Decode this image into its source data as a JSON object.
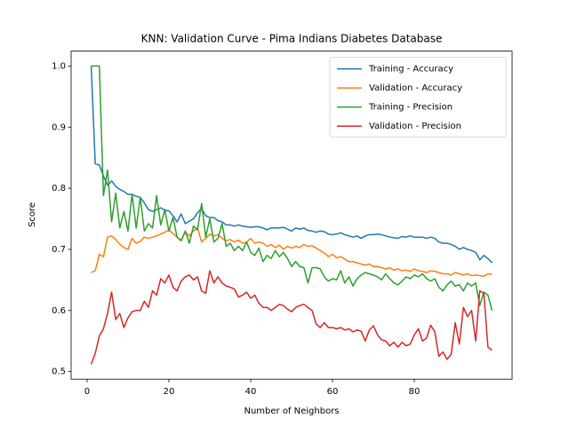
{
  "chart_data": {
    "type": "line",
    "title": "KNN: Validation Curve - Pima Indians Diabetes Database",
    "x_label": "Number of Neighbors",
    "y_label": "Score",
    "xlim": [
      -3.9,
      103.9
    ],
    "ylim": [
      0.4876,
      1.0244
    ],
    "xticks": [
      0,
      20,
      40,
      60,
      80
    ],
    "yticks": [
      0.5,
      0.6,
      0.7,
      0.8,
      0.9,
      {
        "value": 1,
        "label": "1.0"
      }
    ],
    "legend": "upper right",
    "x": [
      1,
      2,
      3,
      4,
      5,
      6,
      7,
      8,
      9,
      10,
      11,
      12,
      13,
      14,
      15,
      16,
      17,
      18,
      19,
      20,
      21,
      22,
      23,
      24,
      25,
      26,
      27,
      28,
      29,
      30,
      31,
      32,
      33,
      34,
      35,
      36,
      37,
      38,
      39,
      40,
      41,
      42,
      43,
      44,
      45,
      46,
      47,
      48,
      49,
      50,
      51,
      52,
      53,
      54,
      55,
      56,
      57,
      58,
      59,
      60,
      61,
      62,
      63,
      64,
      65,
      66,
      67,
      68,
      69,
      70,
      71,
      72,
      73,
      74,
      75,
      76,
      77,
      78,
      79,
      80,
      81,
      82,
      83,
      84,
      85,
      86,
      87,
      88,
      89,
      90,
      91,
      92,
      93,
      94,
      95,
      96,
      97,
      98,
      99
    ],
    "series": [
      {
        "name": "Training - Accuracy",
        "color": "#1f77b4",
        "values": [
          1.0,
          0.84,
          0.838,
          0.82,
          0.805,
          0.812,
          0.803,
          0.798,
          0.795,
          0.79,
          0.79,
          0.787,
          0.785,
          0.776,
          0.765,
          0.762,
          0.765,
          0.768,
          0.764,
          0.763,
          0.755,
          0.745,
          0.758,
          0.742,
          0.746,
          0.75,
          0.76,
          0.767,
          0.755,
          0.752,
          0.752,
          0.747,
          0.745,
          0.74,
          0.74,
          0.738,
          0.74,
          0.738,
          0.737,
          0.736,
          0.737,
          0.737,
          0.735,
          0.732,
          0.735,
          0.735,
          0.735,
          0.736,
          0.733,
          0.73,
          0.735,
          0.733,
          0.735,
          0.731,
          0.73,
          0.728,
          0.73,
          0.729,
          0.725,
          0.724,
          0.725,
          0.727,
          0.724,
          0.722,
          0.72,
          0.722,
          0.718,
          0.722,
          0.724,
          0.724,
          0.725,
          0.724,
          0.722,
          0.72,
          0.719,
          0.718,
          0.721,
          0.72,
          0.722,
          0.72,
          0.72,
          0.72,
          0.718,
          0.72,
          0.718,
          0.712,
          0.71,
          0.71,
          0.708,
          0.705,
          0.7,
          0.703,
          0.7,
          0.698,
          0.695,
          0.683,
          0.69,
          0.685,
          0.678
        ]
      },
      {
        "name": "Validation - Accuracy",
        "color": "#ff7f0e",
        "values": [
          0.662,
          0.665,
          0.692,
          0.688,
          0.72,
          0.722,
          0.716,
          0.708,
          0.703,
          0.7,
          0.718,
          0.71,
          0.713,
          0.72,
          0.718,
          0.72,
          0.722,
          0.725,
          0.728,
          0.732,
          0.726,
          0.72,
          0.715,
          0.728,
          0.722,
          0.73,
          0.735,
          0.712,
          0.718,
          0.725,
          0.722,
          0.724,
          0.718,
          0.714,
          0.716,
          0.712,
          0.715,
          0.71,
          0.712,
          0.718,
          0.71,
          0.712,
          0.71,
          0.705,
          0.708,
          0.703,
          0.707,
          0.7,
          0.705,
          0.702,
          0.705,
          0.703,
          0.708,
          0.705,
          0.706,
          0.702,
          0.698,
          0.694,
          0.688,
          0.692,
          0.686,
          0.688,
          0.684,
          0.68,
          0.68,
          0.678,
          0.676,
          0.674,
          0.676,
          0.672,
          0.672,
          0.67,
          0.668,
          0.67,
          0.666,
          0.668,
          0.665,
          0.666,
          0.664,
          0.668,
          0.665,
          0.664,
          0.662,
          0.665,
          0.664,
          0.662,
          0.66,
          0.66,
          0.658,
          0.662,
          0.66,
          0.658,
          0.66,
          0.657,
          0.658,
          0.657,
          0.656,
          0.66,
          0.659
        ]
      },
      {
        "name": "Training - Precision",
        "color": "#2ca02c",
        "values": [
          1.0,
          1.0,
          1.0,
          0.788,
          0.83,
          0.745,
          0.792,
          0.735,
          0.762,
          0.73,
          0.79,
          0.735,
          0.785,
          0.73,
          0.742,
          0.735,
          0.788,
          0.74,
          0.765,
          0.73,
          0.752,
          0.72,
          0.714,
          0.73,
          0.71,
          0.738,
          0.732,
          0.775,
          0.72,
          0.75,
          0.712,
          0.718,
          0.742,
          0.705,
          0.71,
          0.698,
          0.705,
          0.698,
          0.712,
          0.695,
          0.69,
          0.702,
          0.68,
          0.69,
          0.685,
          0.698,
          0.688,
          0.695,
          0.685,
          0.672,
          0.68,
          0.672,
          0.67,
          0.645,
          0.67,
          0.67,
          0.668,
          0.655,
          0.648,
          0.652,
          0.65,
          0.665,
          0.645,
          0.655,
          0.64,
          0.652,
          0.658,
          0.662,
          0.66,
          0.658,
          0.655,
          0.65,
          0.66,
          0.652,
          0.645,
          0.642,
          0.648,
          0.655,
          0.652,
          0.658,
          0.655,
          0.66,
          0.652,
          0.648,
          0.652,
          0.638,
          0.632,
          0.642,
          0.648,
          0.64,
          0.642,
          0.632,
          0.645,
          0.64,
          0.645,
          0.608,
          0.63,
          0.625,
          0.6
        ]
      },
      {
        "name": "Validation - Precision",
        "color": "#d62728",
        "values": [
          0.512,
          0.53,
          0.558,
          0.57,
          0.595,
          0.63,
          0.585,
          0.595,
          0.572,
          0.588,
          0.598,
          0.6,
          0.6,
          0.615,
          0.605,
          0.632,
          0.625,
          0.652,
          0.645,
          0.658,
          0.638,
          0.632,
          0.648,
          0.655,
          0.658,
          0.65,
          0.655,
          0.632,
          0.628,
          0.665,
          0.645,
          0.655,
          0.645,
          0.64,
          0.638,
          0.635,
          0.622,
          0.625,
          0.63,
          0.62,
          0.625,
          0.612,
          0.605,
          0.605,
          0.6,
          0.605,
          0.61,
          0.608,
          0.602,
          0.598,
          0.605,
          0.608,
          0.61,
          0.605,
          0.6,
          0.578,
          0.572,
          0.58,
          0.572,
          0.572,
          0.57,
          0.572,
          0.568,
          0.57,
          0.565,
          0.568,
          0.566,
          0.55,
          0.568,
          0.575,
          0.56,
          0.552,
          0.55,
          0.542,
          0.548,
          0.54,
          0.548,
          0.542,
          0.545,
          0.56,
          0.57,
          0.55,
          0.555,
          0.576,
          0.565,
          0.525,
          0.532,
          0.52,
          0.528,
          0.58,
          0.545,
          0.605,
          0.59,
          0.6,
          0.55,
          0.632,
          0.628,
          0.54,
          0.535
        ]
      }
    ]
  }
}
